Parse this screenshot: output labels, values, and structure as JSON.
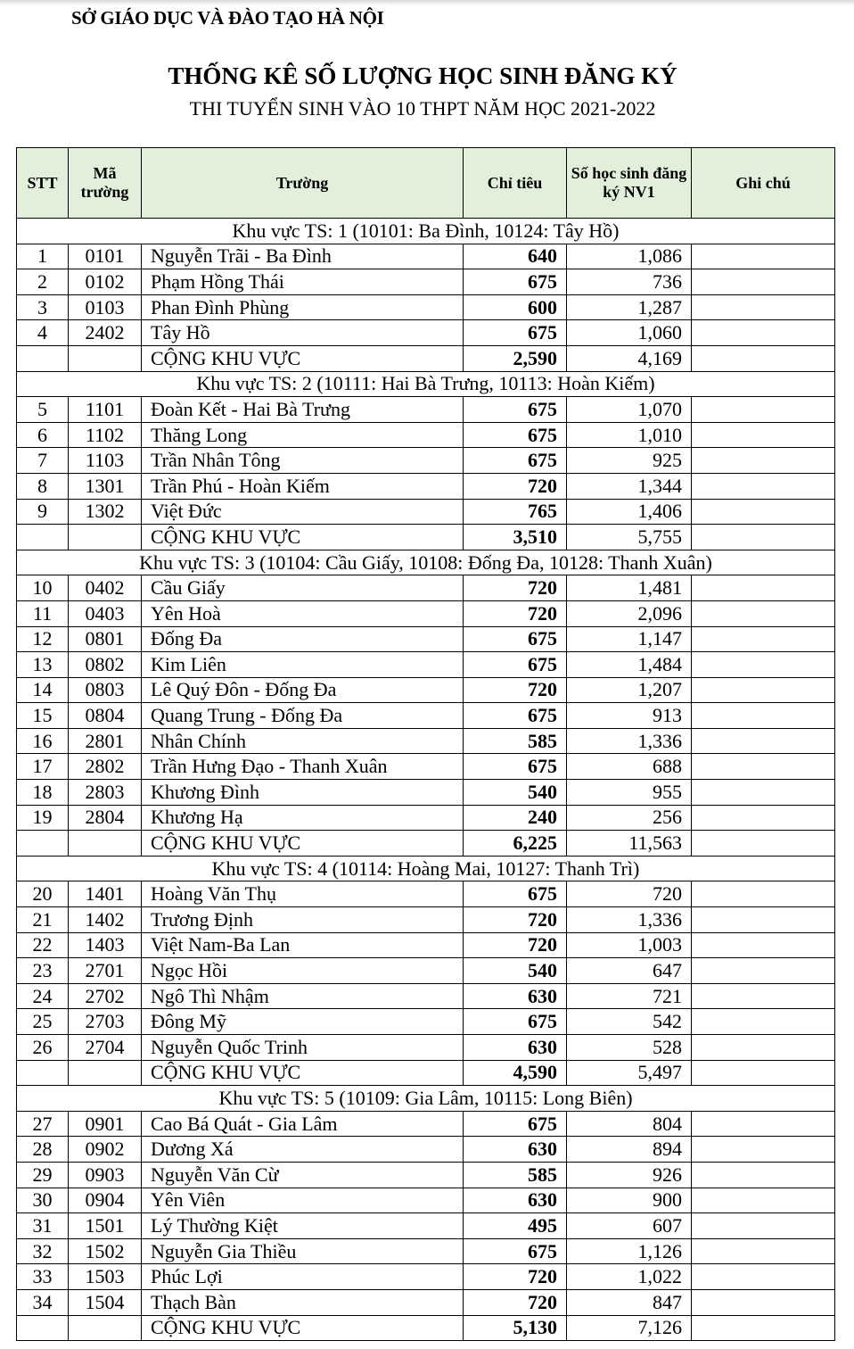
{
  "header": {
    "org": "SỞ GIÁO DỤC VÀ ĐÀO TẠO HÀ NỘI",
    "title": "THỐNG KÊ SỐ LƯỢNG HỌC SINH ĐĂNG KÝ",
    "subtitle": "THI TUYỂN SINH VÀO 10 THPT NĂM HỌC 2021-2022"
  },
  "table": {
    "columns": [
      "STT",
      "Mã trường",
      "Trường",
      "Chỉ tiêu",
      "Số học sinh đăng ký NV1",
      "Ghi chú"
    ],
    "total_label": "CỘNG KHU VỰC",
    "header_color": "#e2efda",
    "regions": [
      {
        "title": "Khu vực TS: 1 (10101: Ba Đình, 10124: Tây Hồ)",
        "total_quota": "2,590",
        "total_reg": "4,169",
        "rows": [
          [
            "1",
            "0101",
            "Nguyễn Trãi - Ba Đình",
            "640",
            "1,086"
          ],
          [
            "2",
            "0102",
            "Phạm Hồng Thái",
            "675",
            "736"
          ],
          [
            "3",
            "0103",
            "Phan Đình Phùng",
            "600",
            "1,287"
          ],
          [
            "4",
            "2402",
            "Tây Hồ",
            "675",
            "1,060"
          ]
        ]
      },
      {
        "title": "Khu vực TS: 2 (10111: Hai Bà Trưng, 10113: Hoàn Kiếm)",
        "total_quota": "3,510",
        "total_reg": "5,755",
        "rows": [
          [
            "5",
            "1101",
            "Đoàn Kết - Hai Bà Trưng",
            "675",
            "1,070"
          ],
          [
            "6",
            "1102",
            "Thăng Long",
            "675",
            "1,010"
          ],
          [
            "7",
            "1103",
            "Trần Nhân Tông",
            "675",
            "925"
          ],
          [
            "8",
            "1301",
            "Trần Phú - Hoàn Kiếm",
            "720",
            "1,344"
          ],
          [
            "9",
            "1302",
            "Việt Đức",
            "765",
            "1,406"
          ]
        ]
      },
      {
        "title": "Khu vực TS: 3 (10104: Cầu Giấy, 10108: Đống Đa, 10128: Thanh Xuân)",
        "total_quota": "6,225",
        "total_reg": "11,563",
        "rows": [
          [
            "10",
            "0402",
            "Cầu Giấy",
            "720",
            "1,481"
          ],
          [
            "11",
            "0403",
            "Yên Hoà",
            "720",
            "2,096"
          ],
          [
            "12",
            "0801",
            "Đống Đa",
            "675",
            "1,147"
          ],
          [
            "13",
            "0802",
            "Kim Liên",
            "675",
            "1,484"
          ],
          [
            "14",
            "0803",
            "Lê Quý Đôn - Đống Đa",
            "720",
            "1,207"
          ],
          [
            "15",
            "0804",
            "Quang Trung - Đống Đa",
            "675",
            "913"
          ],
          [
            "16",
            "2801",
            "Nhân Chính",
            "585",
            "1,336"
          ],
          [
            "17",
            "2802",
            "Trần Hưng Đạo - Thanh Xuân",
            "675",
            "688"
          ],
          [
            "18",
            "2803",
            "Khương Đình",
            "540",
            "955"
          ],
          [
            "19",
            "2804",
            "Khương Hạ",
            "240",
            "256"
          ]
        ]
      },
      {
        "title": "Khu vực TS: 4 (10114: Hoàng Mai, 10127: Thanh Trì)",
        "total_quota": "4,590",
        "total_reg": "5,497",
        "rows": [
          [
            "20",
            "1401",
            "Hoàng Văn Thụ",
            "675",
            "720"
          ],
          [
            "21",
            "1402",
            "Trương Định",
            "720",
            "1,336"
          ],
          [
            "22",
            "1403",
            "Việt Nam-Ba Lan",
            "720",
            "1,003"
          ],
          [
            "23",
            "2701",
            "Ngọc Hồi",
            "540",
            "647"
          ],
          [
            "24",
            "2702",
            "Ngô Thì Nhậm",
            "630",
            "721"
          ],
          [
            "25",
            "2703",
            "Đông Mỹ",
            "675",
            "542"
          ],
          [
            "26",
            "2704",
            "Nguyễn Quốc Trinh",
            "630",
            "528"
          ]
        ]
      },
      {
        "title": "Khu vực TS: 5 (10109: Gia Lâm, 10115: Long Biên)",
        "total_quota": "5,130",
        "total_reg": "7,126",
        "rows": [
          [
            "27",
            "0901",
            "Cao Bá Quát - Gia Lâm",
            "675",
            "804"
          ],
          [
            "28",
            "0902",
            "Dương Xá",
            "630",
            "894"
          ],
          [
            "29",
            "0903",
            "Nguyễn Văn Cừ",
            "585",
            "926"
          ],
          [
            "30",
            "0904",
            "Yên Viên",
            "630",
            "900"
          ],
          [
            "31",
            "1501",
            "Lý Thường Kiệt",
            "495",
            "607"
          ],
          [
            "32",
            "1502",
            "Nguyễn Gia Thiều",
            "675",
            "1,126"
          ],
          [
            "33",
            "1503",
            "Phúc Lợi",
            "720",
            "1,022"
          ],
          [
            "34",
            "1504",
            "Thạch Bàn",
            "720",
            "847"
          ]
        ]
      }
    ]
  }
}
